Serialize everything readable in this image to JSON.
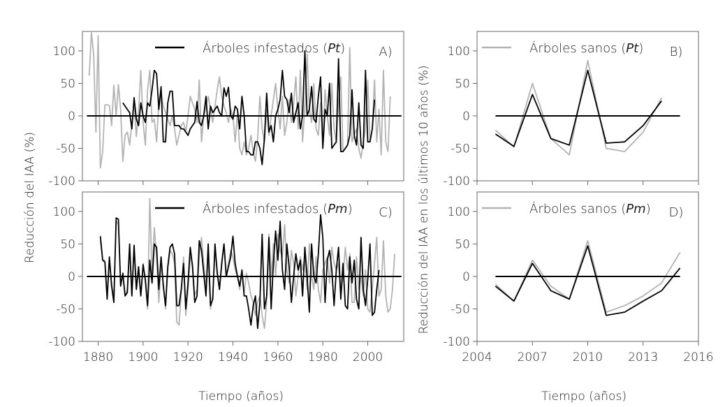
{
  "figure": {
    "left_ylabel": "Reducción del IAA (%)",
    "right_ylabel": "Reducción del IAA en los últimos 10 años (%)",
    "left_xlabel": "Tiempo (años)",
    "right_xlabel": "Tiempo (años)"
  },
  "colors": {
    "infested": "#000000",
    "healthy": "#b3b3b3",
    "zero_line": "#000000",
    "axis": "#666666"
  },
  "chart_data": [
    {
      "id": "A",
      "type": "line",
      "panel_label": "A)",
      "legend": {
        "prefix": "Árboles infestados (",
        "species": "Pt",
        "suffix": ")",
        "color": "#000000"
      },
      "xlim": [
        1873,
        2016
      ],
      "ylim": [
        -100,
        130
      ],
      "xticks": [
        1880,
        1900,
        1920,
        1940,
        1960,
        1980,
        2000
      ],
      "yticks": [
        100,
        50,
        0,
        -50,
        -100
      ],
      "yticklabels": [
        "100",
        "50",
        "0",
        "-50",
        "-100"
      ],
      "zero_line": {
        "x": [
          1875,
          2015
        ],
        "y": 0
      },
      "series": [
        {
          "name": "Árboles sanos (Pt)",
          "color": "#b3b3b3",
          "start_year": 1876,
          "values": [
            62,
            128,
            95,
            -25,
            123,
            -80,
            -55,
            17,
            17,
            16,
            -15,
            47,
            0,
            48,
            10,
            -70,
            -30,
            -25,
            -45,
            -12,
            23,
            -32,
            5,
            70,
            -10,
            -45,
            40,
            70,
            -10,
            -5,
            -40,
            20,
            38,
            15,
            5,
            -5,
            -15,
            0,
            -20,
            -45,
            -30,
            -15,
            -10,
            -25,
            0,
            30,
            20,
            10,
            -10,
            55,
            -40,
            0,
            15,
            30,
            10,
            -10,
            15,
            40,
            60,
            30,
            15,
            5,
            -10,
            10,
            0,
            -40,
            5,
            -50,
            -60,
            -40,
            -60,
            -50,
            -30,
            -55,
            -70,
            -35,
            30,
            -20,
            -40,
            10,
            -30,
            0,
            25,
            50,
            10,
            -20,
            30,
            -30,
            -10,
            25,
            -10,
            20,
            60,
            -20,
            70,
            -40,
            15,
            95,
            10,
            -10,
            50,
            -20,
            -30,
            20,
            -45,
            40,
            0,
            -30,
            50,
            -20,
            -40,
            20,
            60,
            -55,
            -50,
            -45,
            105,
            -40,
            -30,
            -20,
            -50,
            -65,
            -40,
            -20,
            55,
            -40,
            -20,
            55,
            -40,
            10,
            -60,
            70,
            -40,
            -55,
            30
          ]
        },
        {
          "name": "Árboles infestados (Pt)",
          "color": "#000000",
          "start_year": 1891,
          "values": [
            20,
            15,
            10,
            5,
            -20,
            28,
            -5,
            -15,
            20,
            0,
            -10,
            20,
            15,
            40,
            70,
            65,
            10,
            45,
            -40,
            -40,
            20,
            38,
            38,
            -15,
            -15,
            -15,
            -20,
            -20,
            -25,
            -30,
            -20,
            -15,
            -10,
            22,
            -10,
            -15,
            0,
            30,
            -20,
            15,
            5,
            10,
            15,
            5,
            0,
            43,
            30,
            44,
            0,
            -5,
            15,
            10,
            -20,
            30,
            0,
            -55,
            -55,
            -60,
            -60,
            -40,
            -40,
            -50,
            -75,
            -35,
            35,
            -25,
            -15,
            -40,
            0,
            10,
            25,
            70,
            30,
            25,
            5,
            35,
            -10,
            5,
            20,
            -20,
            0,
            100,
            0,
            10,
            45,
            -5,
            -10,
            30,
            60,
            -50,
            10,
            0,
            50,
            -50,
            -45,
            -40,
            88,
            -55,
            -55,
            -50,
            -45,
            -30,
            40,
            -30,
            -45,
            20,
            -45,
            -50,
            70,
            -40,
            -40,
            -20,
            25
          ]
        }
      ]
    },
    {
      "id": "B",
      "type": "line",
      "panel_label": "B)",
      "legend": {
        "prefix": "Árboles sanos (",
        "species": "Pt",
        "suffix": ")",
        "color": "#b3b3b3"
      },
      "xlim": [
        2004,
        2016
      ],
      "ylim": [
        -100,
        130
      ],
      "xticks": [
        2004,
        2007,
        2010,
        2013,
        2016
      ],
      "yticks": [
        100,
        50,
        0,
        -50,
        -100
      ],
      "yticklabels": [
        "100",
        "50",
        "0",
        "-50",
        "-100"
      ],
      "zero_line": {
        "x": [
          2005,
          2015
        ],
        "y": 0
      },
      "series": [
        {
          "name": "Árboles sanos (Pt)",
          "color": "#b3b3b3",
          "x": [
            2005,
            2006,
            2007,
            2008,
            2009,
            2010,
            2011,
            2012,
            2013,
            2014
          ],
          "values": [
            -22,
            -48,
            50,
            -35,
            -60,
            85,
            -50,
            -55,
            -25,
            28
          ]
        },
        {
          "name": "Árboles infestados (Pt)",
          "color": "#000000",
          "x": [
            2005,
            2006,
            2007,
            2008,
            2009,
            2010,
            2011,
            2012,
            2013,
            2014
          ],
          "values": [
            -28,
            -47,
            33,
            -35,
            -45,
            70,
            -42,
            -40,
            -15,
            23
          ]
        }
      ]
    },
    {
      "id": "C",
      "type": "line",
      "panel_label": "C)",
      "legend": {
        "prefix": "Árboles infestados (",
        "species": "Pm",
        "suffix": ")",
        "color": "#000000"
      },
      "xlim": [
        1873,
        2016
      ],
      "ylim": [
        -100,
        130
      ],
      "xticks": [
        1880,
        1900,
        1920,
        1940,
        1960,
        1980,
        2000
      ],
      "xticklabels": [
        "1880",
        "1900",
        "1920",
        "1940",
        "1960",
        "1980",
        "2000"
      ],
      "yticks": [
        100,
        50,
        0,
        -50,
        -100
      ],
      "yticklabels": [
        "100",
        "50",
        "0",
        "-50",
        "-100"
      ],
      "zero_line": {
        "x": [
          1875,
          2015
        ],
        "y": 0
      },
      "series": [
        {
          "name": "Árboles sanos (Pm)",
          "color": "#b3b3b3",
          "start_year": 1881,
          "values": [
            55,
            25,
            25,
            -30,
            25,
            -10,
            -35,
            85,
            80,
            -10,
            0,
            -30,
            -20,
            40,
            -30,
            45,
            -20,
            10,
            -30,
            20,
            -10,
            -50,
            120,
            0,
            75,
            30,
            -40,
            20,
            -10,
            -50,
            10,
            40,
            35,
            20,
            -70,
            -75,
            -25,
            30,
            -60,
            -20,
            30,
            20,
            -30,
            -20,
            30,
            60,
            20,
            -20,
            30,
            -50,
            -30,
            40,
            10,
            -20,
            15,
            50,
            0,
            20,
            40,
            30,
            10,
            0,
            -20,
            5,
            -25,
            5,
            -10,
            -30,
            -40,
            -60,
            -40,
            -30,
            -60,
            -80,
            -40,
            65,
            0,
            50,
            0,
            65,
            40,
            30,
            80,
            10,
            -10,
            40,
            20,
            -30,
            0,
            30,
            10,
            30,
            -20,
            50,
            0,
            -20,
            30,
            -20,
            -40,
            10,
            20,
            30,
            -10,
            45,
            20,
            10,
            20,
            -30,
            0,
            45,
            10,
            35,
            -40,
            -40,
            30,
            -20,
            0,
            -30,
            10,
            -50,
            -55,
            -20,
            20,
            60,
            -30,
            -20,
            55,
            -30,
            -55,
            -50,
            -20,
            35
          ]
        },
        {
          "name": "Árboles infestados (Pm)",
          "color": "#000000",
          "start_year": 1881,
          "values": [
            62,
            25,
            22,
            -35,
            30,
            -15,
            -40,
            90,
            88,
            -15,
            5,
            -30,
            -25,
            50,
            -30,
            48,
            -20,
            15,
            -30,
            18,
            -5,
            -45,
            25,
            -10,
            50,
            45,
            -20,
            30,
            -15,
            -45,
            15,
            45,
            50,
            35,
            -45,
            -45,
            -20,
            20,
            -50,
            -10,
            45,
            15,
            -40,
            -30,
            55,
            40,
            5,
            -30,
            50,
            -45,
            -35,
            50,
            5,
            -20,
            20,
            50,
            0,
            15,
            30,
            62,
            20,
            0,
            -15,
            10,
            -30,
            -30,
            -50,
            -75,
            -45,
            -30,
            -80,
            -40,
            65,
            -50,
            -30,
            60,
            -50,
            20,
            70,
            25,
            85,
            10,
            -20,
            50,
            15,
            -40,
            0,
            35,
            10,
            25,
            -30,
            45,
            0,
            -55,
            50,
            0,
            -10,
            35,
            95,
            60,
            -40,
            25,
            40,
            10,
            -45,
            10,
            45,
            -35,
            20,
            -45,
            -50,
            30,
            -10,
            25,
            -35,
            -50,
            60,
            -20,
            -45,
            -5,
            50,
            -60,
            -55,
            -20,
            10
          ]
        }
      ]
    },
    {
      "id": "D",
      "type": "line",
      "panel_label": "D)",
      "legend": {
        "prefix": "Árboles sanos (",
        "species": "Pm",
        "suffix": ")",
        "color": "#b3b3b3"
      },
      "xlim": [
        2004,
        2016
      ],
      "ylim": [
        -100,
        130
      ],
      "xticks": [
        2004,
        2007,
        2010,
        2013,
        2016
      ],
      "xticklabels": [
        "2004",
        "2007",
        "2010",
        "2013",
        "2016"
      ],
      "yticks": [
        100,
        50,
        0,
        -50,
        -100
      ],
      "yticklabels": [
        "100",
        "50",
        "0",
        "-50",
        "-100"
      ],
      "zero_line": {
        "x": [
          2005,
          2015
        ],
        "y": 0
      },
      "series": [
        {
          "name": "Árboles sanos (Pm)",
          "color": "#b3b3b3",
          "x": [
            2005,
            2006,
            2007,
            2008,
            2009,
            2010,
            2011,
            2012,
            2013,
            2014,
            2015
          ],
          "values": [
            -12,
            -38,
            25,
            -15,
            -35,
            55,
            -55,
            -45,
            -30,
            -10,
            37
          ]
        },
        {
          "name": "Árboles infestados (Pm)",
          "color": "#000000",
          "x": [
            2005,
            2006,
            2007,
            2008,
            2009,
            2010,
            2011,
            2012,
            2013,
            2014,
            2015
          ],
          "values": [
            -15,
            -38,
            20,
            -22,
            -35,
            47,
            -60,
            -55,
            -38,
            -22,
            13
          ]
        }
      ]
    }
  ]
}
